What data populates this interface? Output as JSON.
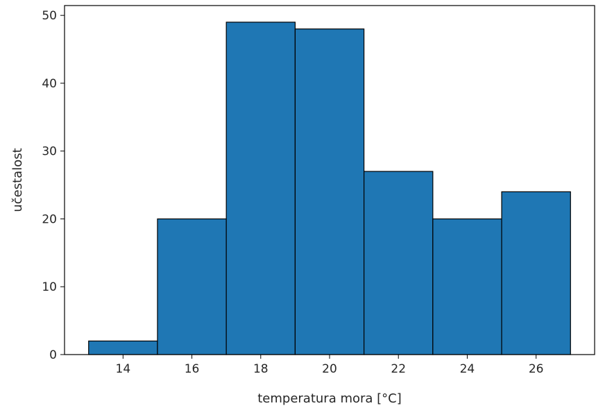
{
  "chart_data": {
    "type": "bar",
    "histogram": true,
    "bins": [
      {
        "start": 13,
        "end": 15,
        "value": 2
      },
      {
        "start": 15,
        "end": 17,
        "value": 20
      },
      {
        "start": 17,
        "end": 19,
        "value": 49
      },
      {
        "start": 19,
        "end": 21,
        "value": 48
      },
      {
        "start": 21,
        "end": 23,
        "value": 27
      },
      {
        "start": 23,
        "end": 25,
        "value": 20
      },
      {
        "start": 25,
        "end": 27,
        "value": 24
      }
    ],
    "xlabel": "temperatura mora [°C]",
    "ylabel": "učestalost",
    "xticks": [
      14,
      16,
      18,
      20,
      22,
      24,
      26
    ],
    "yticks": [
      0,
      10,
      20,
      30,
      40,
      50
    ],
    "xlim": [
      12.3,
      27.7
    ],
    "ylim": [
      0,
      51.45
    ],
    "grid": false,
    "colors": {
      "bar": "#1f77b4",
      "edge": "#000000",
      "axis": "#000000"
    }
  }
}
